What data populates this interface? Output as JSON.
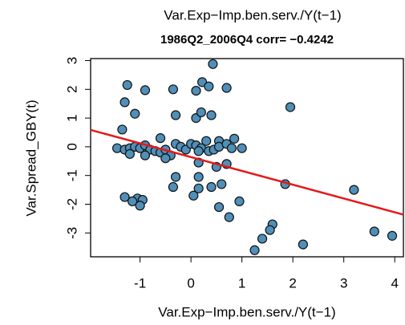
{
  "chart_data": {
    "type": "scatter",
    "title": "Var.Exp−Imp.ben.serv./Y(t−1)",
    "subtitle": "1986Q2_2006Q4 corr= −0.4242",
    "x_label": "Var.Exp−Imp.ben.serv./Y(t−1)",
    "y_label": "Var.Spread_GBY(t)",
    "x": [
      0.43,
      -1.25,
      -0.9,
      -0.35,
      0.1,
      0.22,
      0.35,
      0.7,
      -1.3,
      -1.1,
      -0.3,
      0.1,
      0.2,
      0.4,
      1.95,
      -1.35,
      -0.6,
      0.3,
      0.55,
      0.85,
      -1.45,
      -1.3,
      -1.2,
      -1.1,
      -1.0,
      -0.9,
      -0.8,
      -0.7,
      -0.6,
      -0.5,
      -0.4,
      -0.3,
      -0.2,
      -0.1,
      0.0,
      0.1,
      0.2,
      0.35,
      0.45,
      0.55,
      0.7,
      0.8,
      1.0,
      0.15,
      -1.2,
      -0.9,
      -0.5,
      0.5,
      0.7,
      0.15,
      -0.3,
      0.15,
      0.4,
      0.6,
      -0.35,
      0.15,
      0.05,
      -1.05,
      -0.95,
      -1.3,
      -1.15,
      -1.0,
      0.55,
      0.75,
      0.95,
      1.85,
      3.2,
      1.6,
      1.55,
      1.4,
      1.25,
      2.2,
      3.6,
      3.95
    ],
    "y": [
      2.88,
      2.15,
      1.97,
      2.0,
      1.95,
      2.25,
      2.1,
      2.05,
      1.55,
      1.15,
      1.1,
      1.0,
      1.2,
      1.1,
      1.38,
      0.6,
      0.3,
      0.2,
      0.2,
      0.28,
      -0.05,
      -0.1,
      -0.05,
      0.0,
      -0.05,
      0.05,
      -0.1,
      -0.15,
      -0.2,
      -0.1,
      -0.3,
      0.1,
      0.0,
      -0.1,
      0.1,
      0.05,
      -0.05,
      -0.15,
      -0.1,
      0.0,
      0.1,
      -0.05,
      -0.05,
      -0.15,
      -0.25,
      -0.3,
      -0.4,
      -0.7,
      -0.6,
      -0.55,
      -1.05,
      -1.05,
      -1.4,
      -1.3,
      -1.4,
      -1.45,
      -1.7,
      -1.8,
      -1.85,
      -1.75,
      -1.9,
      -2.05,
      -2.1,
      -2.45,
      -1.9,
      -1.3,
      -1.5,
      -2.7,
      -2.9,
      -3.2,
      -3.6,
      -3.4,
      -2.95,
      -3.1
    ],
    "color": "#4f8fb8",
    "regression": {
      "intercept": -0.36,
      "slope": -0.48,
      "color": "#e31a1c"
    },
    "xlim": [
      -1.97,
      4.17
    ],
    "ylim": [
      -3.83,
      3.07
    ],
    "xticks": [
      -1,
      0,
      1,
      2,
      3,
      4
    ],
    "yticks": [
      -3,
      -2,
      -1,
      0,
      1,
      2,
      3
    ]
  }
}
